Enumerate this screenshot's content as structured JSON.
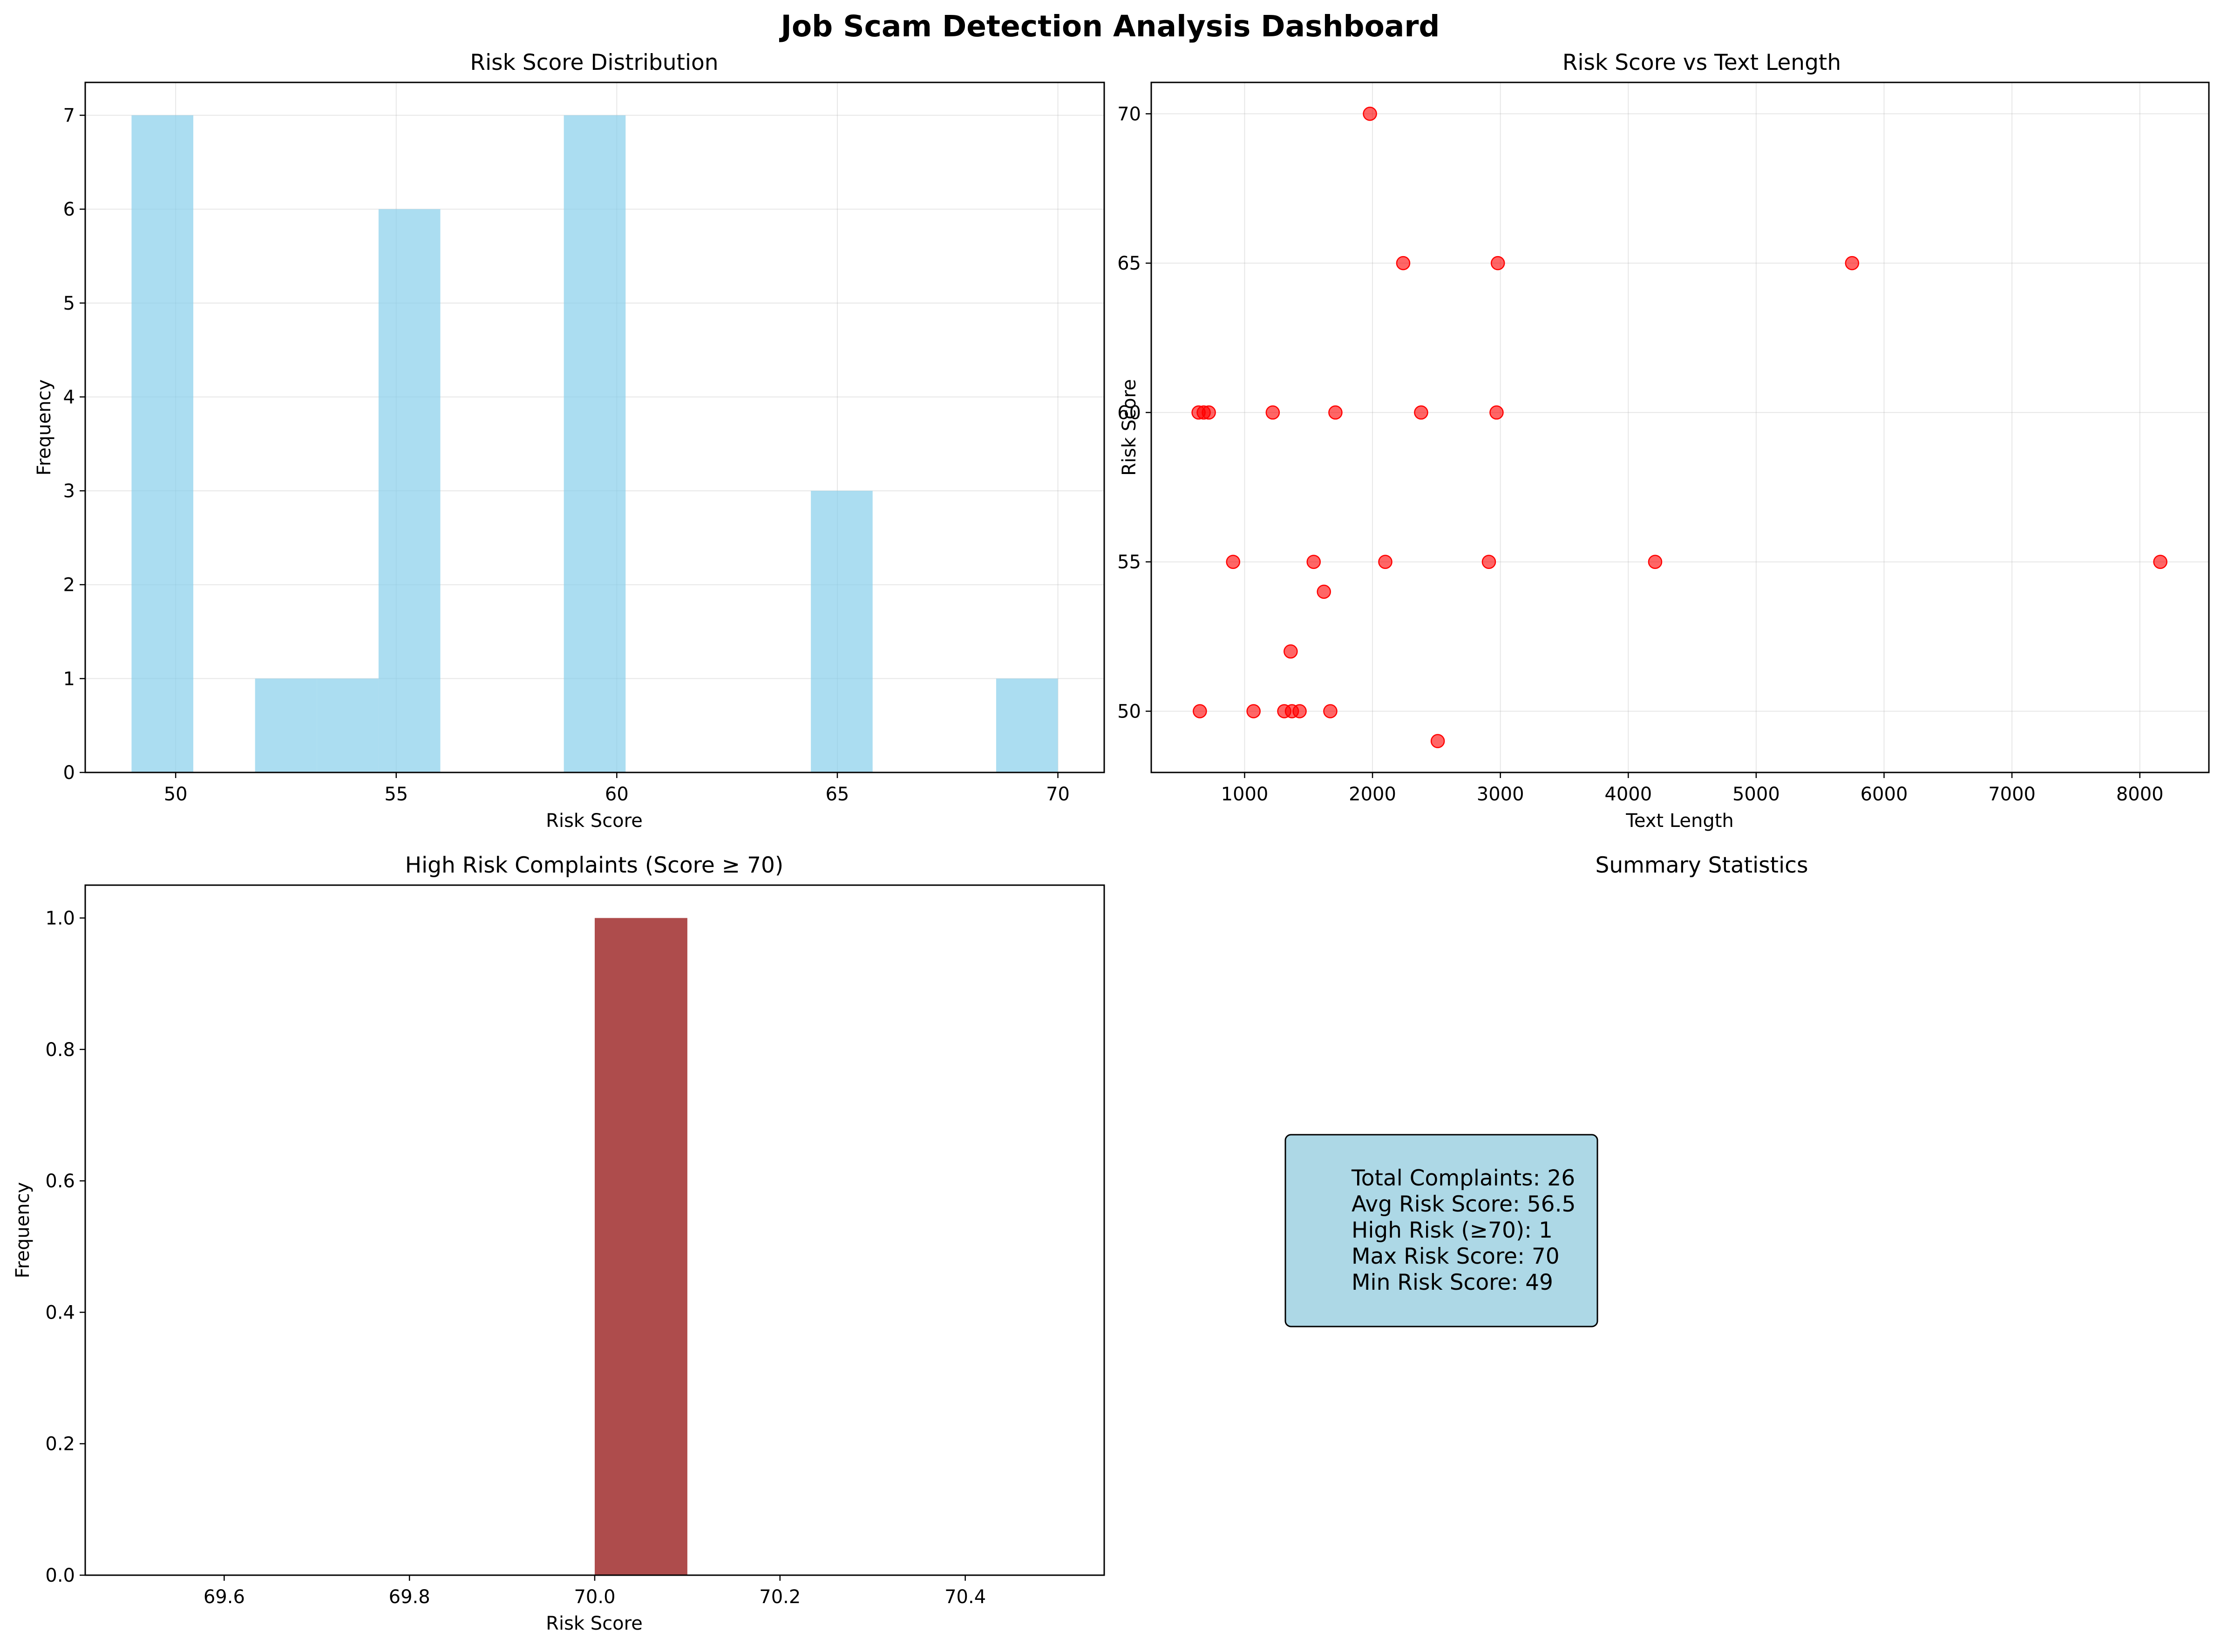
{
  "suptitle": "Job Scam Detection Analysis Dashboard",
  "colors": {
    "hist_fill": "#87CEEB",
    "scatter_point": "#FF0000",
    "high_risk_bar": "#8B0000",
    "stats_box": "#ADD8E6",
    "grid": "#b0b0b0"
  },
  "summary": {
    "title": "Summary Statistics",
    "lines": [
      "Total Complaints: 26",
      "Avg Risk Score: 56.5",
      "High Risk (≥70): 1",
      "Max Risk Score: 70",
      "Min Risk Score: 49"
    ]
  },
  "chart_data": [
    {
      "type": "bar",
      "subtype": "histogram",
      "title": "Risk Score Distribution",
      "xlabel": "Risk Score",
      "ylabel": "Frequency",
      "bin_edges": [
        49,
        50.4,
        51.8,
        53.2,
        54.6,
        56,
        57.4,
        58.8,
        60.2,
        61.6,
        63,
        64.4,
        65.8,
        67.2,
        68.6,
        70
      ],
      "values": [
        7,
        0,
        1,
        1,
        6,
        0,
        0,
        7,
        0,
        0,
        0,
        3,
        0,
        0,
        1
      ],
      "xlim": [
        47.95,
        71.05
      ],
      "ylim": [
        0,
        7.35
      ],
      "xticks": [
        50,
        55,
        60,
        65,
        70
      ],
      "yticks": [
        0,
        1,
        2,
        3,
        4,
        5,
        6,
        7
      ],
      "grid": true
    },
    {
      "type": "scatter",
      "title": "Risk Score vs Text Length",
      "xlabel": "Text Length",
      "ylabel": "Risk Score",
      "points": [
        {
          "x": 1980,
          "y": 70
        },
        {
          "x": 2240,
          "y": 65
        },
        {
          "x": 2980,
          "y": 65
        },
        {
          "x": 5750,
          "y": 65
        },
        {
          "x": 640,
          "y": 60
        },
        {
          "x": 680,
          "y": 60
        },
        {
          "x": 720,
          "y": 60
        },
        {
          "x": 1220,
          "y": 60
        },
        {
          "x": 1710,
          "y": 60
        },
        {
          "x": 2380,
          "y": 60
        },
        {
          "x": 2970,
          "y": 60
        },
        {
          "x": 910,
          "y": 55
        },
        {
          "x": 1540,
          "y": 55
        },
        {
          "x": 2100,
          "y": 55
        },
        {
          "x": 2910,
          "y": 55
        },
        {
          "x": 4210,
          "y": 55
        },
        {
          "x": 8160,
          "y": 55
        },
        {
          "x": 1620,
          "y": 54
        },
        {
          "x": 1360,
          "y": 52
        },
        {
          "x": 650,
          "y": 50
        },
        {
          "x": 1070,
          "y": 50
        },
        {
          "x": 1310,
          "y": 50
        },
        {
          "x": 1370,
          "y": 50
        },
        {
          "x": 1430,
          "y": 50
        },
        {
          "x": 1670,
          "y": 50
        },
        {
          "x": 2510,
          "y": 49
        }
      ],
      "xlim": [
        270,
        8540
      ],
      "ylim": [
        47.95,
        71.05
      ],
      "xticks": [
        1000,
        2000,
        3000,
        4000,
        5000,
        6000,
        7000,
        8000
      ],
      "yticks": [
        50,
        55,
        60,
        65,
        70
      ],
      "grid": true
    },
    {
      "type": "bar",
      "subtype": "histogram",
      "title": "High Risk Complaints (Score ≥ 70)",
      "xlabel": "Risk Score",
      "ylabel": "Frequency",
      "bars": [
        {
          "x0": 70.0,
          "x1": 70.1,
          "value": 1
        }
      ],
      "xlim": [
        69.45,
        70.55
      ],
      "ylim": [
        0,
        1.05
      ],
      "xticks": [
        69.6,
        69.8,
        70.0,
        70.2,
        70.4
      ],
      "xtick_labels": [
        "69.6",
        "69.8",
        "70.0",
        "70.2",
        "70.4"
      ],
      "yticks": [
        0.0,
        0.2,
        0.4,
        0.6,
        0.8,
        1.0
      ],
      "ytick_labels": [
        "0.0",
        "0.2",
        "0.4",
        "0.6",
        "0.8",
        "1.0"
      ],
      "grid": false
    }
  ]
}
